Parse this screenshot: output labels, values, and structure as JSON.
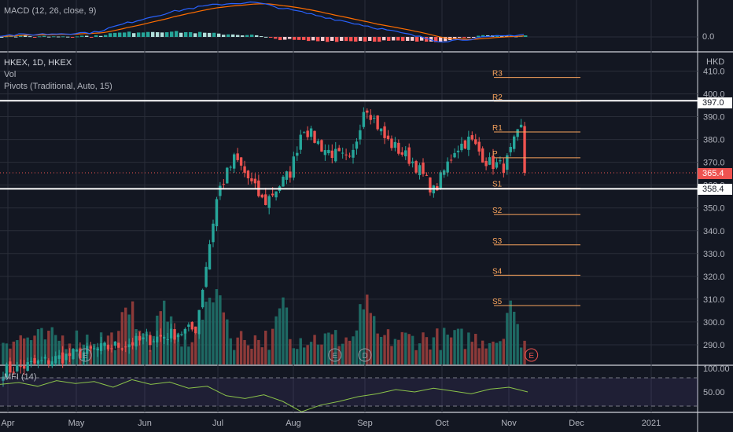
{
  "colors": {
    "background": "#131722",
    "up": "#26a69a",
    "down": "#ef5350",
    "macd": "#2962ff",
    "signal": "#ff6d00",
    "pivot": "#f7a35c",
    "mfi": "#7e57c2",
    "grid": "#2a2e39",
    "level": "#ffffff"
  },
  "header": {
    "symbol": "HKEX, 1D, HKEX",
    "vol": "Vol",
    "pivots": "Pivots (Traditional, Auto, 15)",
    "macd": "MACD (12, 26, close, 9)",
    "mfi": "MFI (14)",
    "currency": "HKD"
  },
  "price_tags": {
    "resistance": "397.0",
    "last": "365.4",
    "support": "358.4"
  },
  "macd_axis_label": "0.0",
  "events": {
    "earnings_marker": "E",
    "dividend_marker": "D"
  },
  "chart_data": [
    {
      "type": "candlestick",
      "title": "HKEX, 1D, HKEX",
      "ylim": [
        283,
        418
      ],
      "y_ticks": [
        "410.0",
        "400.0",
        "390.0",
        "380.0",
        "370.0",
        "360.0",
        "350.0",
        "340.0",
        "330.0",
        "320.0",
        "310.0",
        "300.0",
        "290.0"
      ],
      "x_ticks": [
        "Apr",
        "May",
        "Jun",
        "Jul",
        "Aug",
        "Sep",
        "Oct",
        "Nov",
        "Dec",
        "2021"
      ],
      "last_price": 365.4,
      "horizontal_levels": [
        397.0,
        358.4
      ],
      "pivots": [
        {
          "name": "R3",
          "value": 407.2
        },
        {
          "name": "R2",
          "value": 396.8
        },
        {
          "name": "R1",
          "value": 383.3
        },
        {
          "name": "P",
          "value": 372.0
        },
        {
          "name": "S1",
          "value": 358.6
        },
        {
          "name": "S2",
          "value": 347.1
        },
        {
          "name": "S3",
          "value": 333.8
        },
        {
          "name": "S4",
          "value": 320.5
        },
        {
          "name": "S5",
          "value": 307.2
        }
      ],
      "close_path": [
        {
          "x": "Apr",
          "y": 279
        },
        {
          "x": "May",
          "y": 286
        },
        {
          "x": "Jun",
          "y": 292
        },
        {
          "x": "Jun 22",
          "y": 297
        },
        {
          "x": "Jul",
          "y": 357
        },
        {
          "x": "Jul 8",
          "y": 372
        },
        {
          "x": "Jul 20",
          "y": 352
        },
        {
          "x": "Jul 31",
          "y": 366
        },
        {
          "x": "Aug 5",
          "y": 386
        },
        {
          "x": "Aug 14",
          "y": 376
        },
        {
          "x": "Aug 26",
          "y": 370
        },
        {
          "x": "Sep",
          "y": 396
        },
        {
          "x": "Sep 9",
          "y": 380
        },
        {
          "x": "Sep 20",
          "y": 370
        },
        {
          "x": "Sep 28",
          "y": 357
        },
        {
          "x": "Oct 7",
          "y": 376
        },
        {
          "x": "Oct 14",
          "y": 380
        },
        {
          "x": "Oct 22",
          "y": 370
        },
        {
          "x": "Oct 30",
          "y": 368
        },
        {
          "x": "Nov 4",
          "y": 380
        },
        {
          "x": "Nov 9",
          "y": 390
        },
        {
          "x": "Nov 12",
          "y": 365.4
        }
      ],
      "volume_spikes": [
        "May 25",
        "Jun 8",
        "Jun 30",
        "Jul 28",
        "Sep 1",
        "Nov 2"
      ],
      "earnings": [
        "May 5",
        "Aug 19",
        "Nov 11"
      ],
      "dividends": [
        "Sep 1"
      ]
    },
    {
      "type": "line",
      "title": "MACD (12, 26, close, 9)",
      "y_ticks": [
        "0.0"
      ],
      "series": [
        {
          "name": "MACD",
          "color": "#2962ff"
        },
        {
          "name": "Signal",
          "color": "#ff6d00"
        }
      ]
    },
    {
      "type": "line",
      "title": "MFI (14)",
      "ylim": [
        0,
        100
      ],
      "y_ticks": [
        "100.00",
        "50.00"
      ],
      "bands": [
        80,
        20
      ],
      "series": [
        {
          "name": "MFI",
          "values": [
            66,
            70,
            62,
            74,
            68,
            72,
            60,
            76,
            66,
            71,
            58,
            62,
            42,
            36,
            44,
            30,
            8,
            22,
            30,
            40,
            46,
            55,
            50,
            58,
            52,
            46,
            56,
            60,
            50
          ]
        }
      ]
    }
  ]
}
